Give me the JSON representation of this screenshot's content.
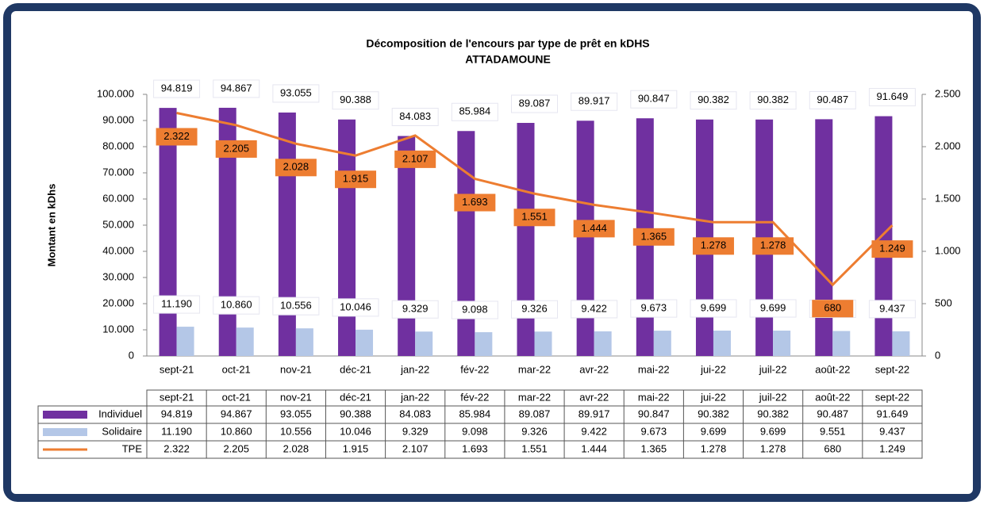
{
  "chart_data": {
    "type": "bar_line",
    "title": "Décomposition de l'encours par type de prêt en kDHS",
    "subtitle": "ATTADAMOUNE",
    "y_label": "Montant en kDhs",
    "categories": [
      "sept-21",
      "oct-21",
      "nov-21",
      "déc-21",
      "jan-22",
      "fév-22",
      "mar-22",
      "avr-22",
      "mai-22",
      "jui-22",
      "juil-22",
      "août-22",
      "sept-22"
    ],
    "series": [
      {
        "name": "Individuel",
        "type": "bar",
        "color": "#7030a0",
        "values": [
          94819,
          94867,
          93055,
          90388,
          84083,
          85984,
          89087,
          89917,
          90847,
          90382,
          90382,
          90487,
          91649
        ],
        "value_labels": [
          "94.819",
          "94.867",
          "93.055",
          "90.388",
          "84.083",
          "85.984",
          "89.087",
          "89.917",
          "90.847",
          "90.382",
          "90.382",
          "90.487",
          "91.649"
        ]
      },
      {
        "name": "Solidaire",
        "type": "bar",
        "color": "#b4c7e7",
        "values": [
          11190,
          10860,
          10556,
          10046,
          9329,
          9098,
          9326,
          9422,
          9673,
          9699,
          9699,
          9551,
          9437
        ],
        "value_labels": [
          "11.190",
          "10.860",
          "10.556",
          "10.046",
          "9.329",
          "9.098",
          "9.326",
          "9.422",
          "9.673",
          "9.699",
          "9.699",
          "9.551",
          "9.437"
        ]
      },
      {
        "name": "TPE",
        "type": "line",
        "axis": "y2",
        "color": "#ed7d31",
        "values": [
          2322,
          2205,
          2028,
          1915,
          2107,
          1693,
          1551,
          1444,
          1365,
          1278,
          1278,
          680,
          1249
        ],
        "value_labels": [
          "2.322",
          "2.205",
          "2.028",
          "1.915",
          "2.107",
          "1.693",
          "1.551",
          "1.444",
          "1.365",
          "1.278",
          "1.278",
          "680",
          "1.249"
        ]
      }
    ],
    "ylim": [
      0,
      100000
    ],
    "yticks": [
      0,
      {
        "value": 10000,
        "label": "10.000"
      },
      {
        "value": 20000,
        "label": "20.000"
      },
      {
        "value": 30000,
        "label": "30.000"
      },
      {
        "value": 40000,
        "label": "40.000"
      },
      {
        "value": 50000,
        "label": "50.000"
      },
      {
        "value": 60000,
        "label": "60.000"
      },
      {
        "value": 70000,
        "label": "70.000"
      },
      {
        "value": 80000,
        "label": "80.000"
      },
      {
        "value": 90000,
        "label": "90.000"
      },
      {
        "value": 100000,
        "label": "100.000"
      }
    ],
    "y2lim": [
      0,
      2500
    ],
    "y2ticks": [
      0,
      500,
      {
        "value": 1000,
        "label": "1.000"
      },
      {
        "value": 1500,
        "label": "1.500"
      },
      {
        "value": 2000,
        "label": "2.000"
      },
      {
        "value": 2500,
        "label": "2.500"
      }
    ],
    "grid": false
  }
}
